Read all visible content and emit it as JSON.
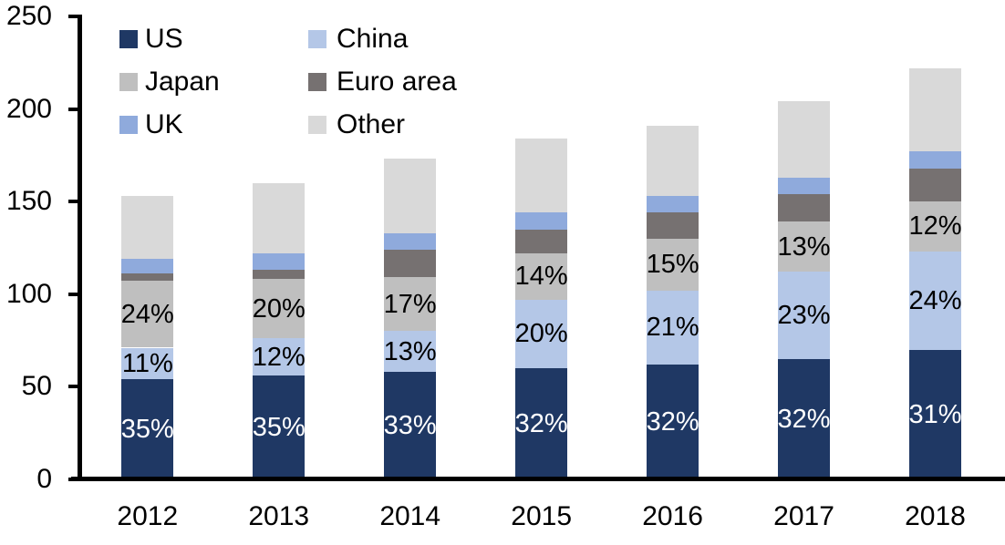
{
  "chart_data": {
    "type": "bar",
    "stacked": true,
    "title": "",
    "xlabel": "",
    "ylabel": "",
    "ylim": [
      0,
      250
    ],
    "yticks": [
      "0",
      "50",
      "100",
      "150",
      "200",
      "250"
    ],
    "grid": false,
    "legend_position": "top-left-two-columns",
    "categories": [
      "2012",
      "2013",
      "2014",
      "2015",
      "2016",
      "2017",
      "2018"
    ],
    "series": [
      {
        "name": "US",
        "color": "#1F3864",
        "values": [
          54,
          56,
          58,
          60,
          62,
          65,
          70
        ],
        "labels": [
          "35%",
          "35%",
          "33%",
          "32%",
          "32%",
          "32%",
          "31%"
        ],
        "label_color": "#FFFFFF"
      },
      {
        "name": "China",
        "color": "#B4C7E7",
        "values": [
          17,
          20,
          22,
          37,
          40,
          47,
          53
        ],
        "labels": [
          "11%",
          "12%",
          "13%",
          "20%",
          "21%",
          "23%",
          "24%"
        ],
        "label_color": "#000000"
      },
      {
        "name": "Japan",
        "color": "#BFBFBF",
        "values": [
          36,
          32,
          29,
          25,
          28,
          27,
          27
        ],
        "labels": [
          "24%",
          "20%",
          "17%",
          "14%",
          "15%",
          "13%",
          "12%"
        ],
        "label_color": "#000000"
      },
      {
        "name": "Euro area",
        "color": "#767171",
        "values": [
          4,
          5,
          15,
          13,
          14,
          15,
          18
        ],
        "labels": null,
        "label_color": null
      },
      {
        "name": "UK",
        "color": "#8FAADC",
        "values": [
          8,
          9,
          9,
          9,
          9,
          9,
          9
        ],
        "labels": null,
        "label_color": null
      },
      {
        "name": "Other",
        "color": "#D9D9D9",
        "values": [
          34,
          38,
          40,
          40,
          38,
          41,
          45
        ],
        "labels": null,
        "label_color": null
      }
    ],
    "totals": [
      153,
      160,
      173,
      184,
      191,
      204,
      222
    ],
    "axis_color": "#000000",
    "text_color": "#000000"
  }
}
